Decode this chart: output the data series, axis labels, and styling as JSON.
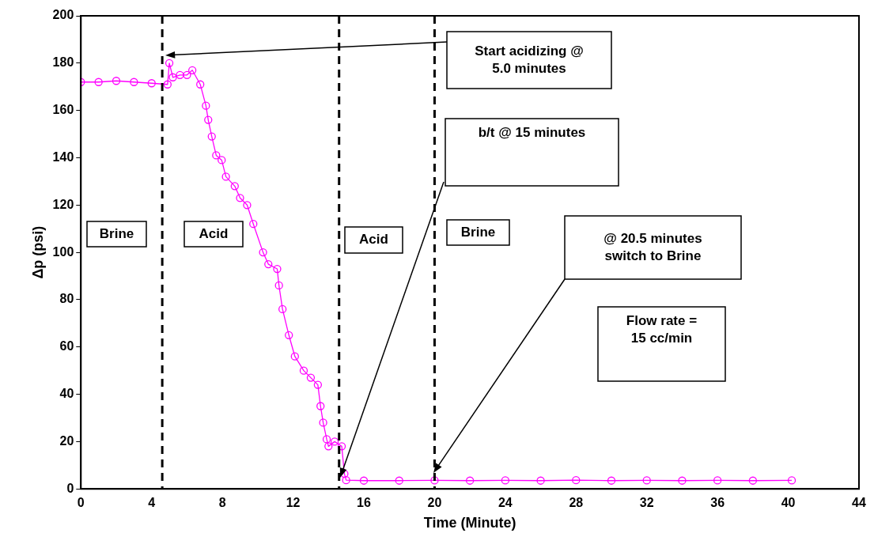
{
  "chart_data": {
    "type": "line",
    "xlabel": "Time (Minute)",
    "ylabel": "Δp (psi)",
    "xlim": [
      0,
      44
    ],
    "xticks": [
      0,
      4,
      8,
      12,
      16,
      20,
      24,
      28,
      32,
      36,
      40,
      44
    ],
    "ylim": [
      0,
      200
    ],
    "yticks": [
      0,
      20,
      40,
      60,
      80,
      100,
      120,
      140,
      160,
      180,
      200
    ],
    "grid": false,
    "legend": false,
    "marker": "circle",
    "line_style": "solid",
    "series": [
      {
        "color": "#ff00ff",
        "x": [
          0,
          1,
          2,
          3,
          4,
          4.9,
          5.0,
          5.2,
          5.6,
          6.0,
          6.3,
          6.75,
          7.07,
          7.2,
          7.4,
          7.65,
          7.96,
          8.2,
          8.7,
          9.0,
          9.4,
          9.75,
          10.3,
          10.6,
          11.1,
          11.2,
          11.4,
          11.76,
          12.1,
          12.6,
          13.0,
          13.4,
          13.55,
          13.7,
          13.9,
          14.0,
          14.35,
          14.75,
          14.9,
          15.0,
          16,
          18,
          20,
          22,
          24,
          26,
          28,
          30,
          32,
          34,
          36,
          38,
          40.2
        ],
        "values": [
          172,
          172,
          172.5,
          172,
          171.5,
          171,
          180,
          174,
          175,
          175,
          177,
          171,
          162,
          156,
          149,
          141,
          139,
          132,
          128,
          123,
          120,
          112,
          100,
          95,
          93,
          86,
          76,
          65,
          56,
          50,
          47,
          44,
          35,
          28,
          21,
          18,
          20,
          18,
          6.4,
          3.7,
          3.5,
          3.5,
          3.6,
          3.5,
          3.6,
          3.5,
          3.7,
          3.5,
          3.6,
          3.5,
          3.6,
          3.5,
          3.6
        ]
      }
    ],
    "ref_lines": [
      {
        "axis": "x",
        "value": 4.6,
        "line_style": "dashed",
        "color": "#000000"
      },
      {
        "axis": "x",
        "value": 14.6,
        "line_style": "dashed",
        "color": "#000000"
      },
      {
        "axis": "x",
        "value": 20.0,
        "line_style": "dashed",
        "color": "#000000"
      }
    ],
    "annotations": [
      "Start acidizing @ 5.0 minutes",
      "b/t @ 15 minutes",
      "@ 20.5 minutes switch to Brine",
      "Brine",
      "Acid",
      "Acid",
      "Brine",
      "Flow rate = 15 cc/min"
    ]
  }
}
